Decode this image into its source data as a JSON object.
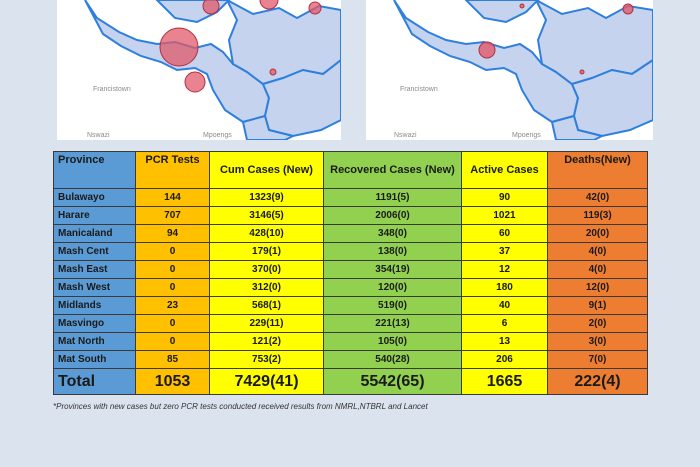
{
  "maps": {
    "left_labels": [
      "Francistown",
      "Nswazi",
      "Mpoengs"
    ],
    "right_labels": [
      "Francistown",
      "Nswazi",
      "Mpoengs"
    ]
  },
  "table": {
    "headers": [
      "Province",
      "PCR Tests",
      "Cum Cases (New)",
      "Recovered Cases (New)",
      "Active Cases",
      "Deaths(New)"
    ],
    "rows": [
      [
        "Bulawayo",
        "144",
        "1323(9)",
        "1191(5)",
        "90",
        "42(0)"
      ],
      [
        "Harare",
        "707",
        "3146(5)",
        "2006(0)",
        "1021",
        "119(3)"
      ],
      [
        "Manicaland",
        "94",
        "428(10)",
        "348(0)",
        "60",
        "20(0)"
      ],
      [
        "Mash Cent",
        "0",
        "179(1)",
        "138(0)",
        "37",
        "4(0)"
      ],
      [
        "Mash East",
        "0",
        "370(0)",
        "354(19)",
        "12",
        "4(0)"
      ],
      [
        "Mash West",
        "0",
        "312(0)",
        "120(0)",
        "180",
        "12(0)"
      ],
      [
        "Midlands",
        "23",
        "568(1)",
        "519(0)",
        "40",
        "9(1)"
      ],
      [
        "Masvingo",
        "0",
        "229(11)",
        "221(13)",
        "6",
        "2(0)"
      ],
      [
        "Mat North",
        "0",
        "121(2)",
        "105(0)",
        "13",
        "3(0)"
      ],
      [
        "Mat South",
        "85",
        "753(2)",
        "540(28)",
        "206",
        "7(0)"
      ]
    ],
    "total": [
      "Total",
      "1053",
      "7429(41)",
      "5542(65)",
      "1665",
      "222(4)"
    ]
  },
  "footnote": "*Provinces with new cases but zero PCR tests conducted received results from NMRL,NTBRL and Lancet",
  "colors": {
    "province": "#5b9bd5",
    "pcr": "#ffc000",
    "cum": "#ffff00",
    "recovered": "#92d050",
    "active": "#ffff00",
    "deaths": "#ed7d31",
    "map_fill": "#c5d3ef",
    "map_border": "#2f7fdc",
    "bubble": "#e05a6a"
  }
}
